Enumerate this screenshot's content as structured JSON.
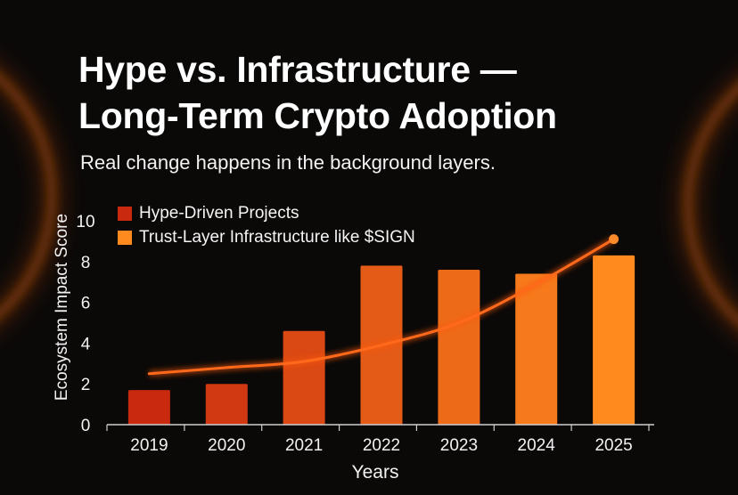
{
  "title_line1": "Hype vs. Infrastructure —",
  "title_line2": "Long-Term Crypto Adoption",
  "subtitle": "Real change happens in the background layers.",
  "colors": {
    "background": "#0b0908",
    "hype": "#c8290f",
    "infrastructure": "#ff8a1e",
    "glow": "#ff5a0a"
  },
  "chart_data": {
    "type": "bar",
    "title": "Hype vs. Infrastructure — Long-Term Crypto Adoption",
    "subtitle": "Real change happens in the background layers.",
    "xlabel": "Years",
    "ylabel": "Ecosystem Impact Score",
    "categories": [
      "2019",
      "2020",
      "2021",
      "2022",
      "2023",
      "2024",
      "2025"
    ],
    "yticks": [
      "0",
      "2",
      "4",
      "6",
      "8",
      "10"
    ],
    "ylim": [
      0,
      10
    ],
    "grid": false,
    "legend_position": "top-left",
    "series": [
      {
        "name": "Hype-Driven Projects",
        "type": "bar",
        "values": [
          1.7,
          2.0,
          4.6,
          7.8,
          7.6,
          7.4,
          8.3
        ]
      },
      {
        "name": "Trust-Layer Infrastructure like $SIGN",
        "type": "line",
        "values": [
          2.5,
          2.8,
          3.1,
          3.9,
          5.0,
          6.9,
          9.1
        ]
      }
    ]
  }
}
